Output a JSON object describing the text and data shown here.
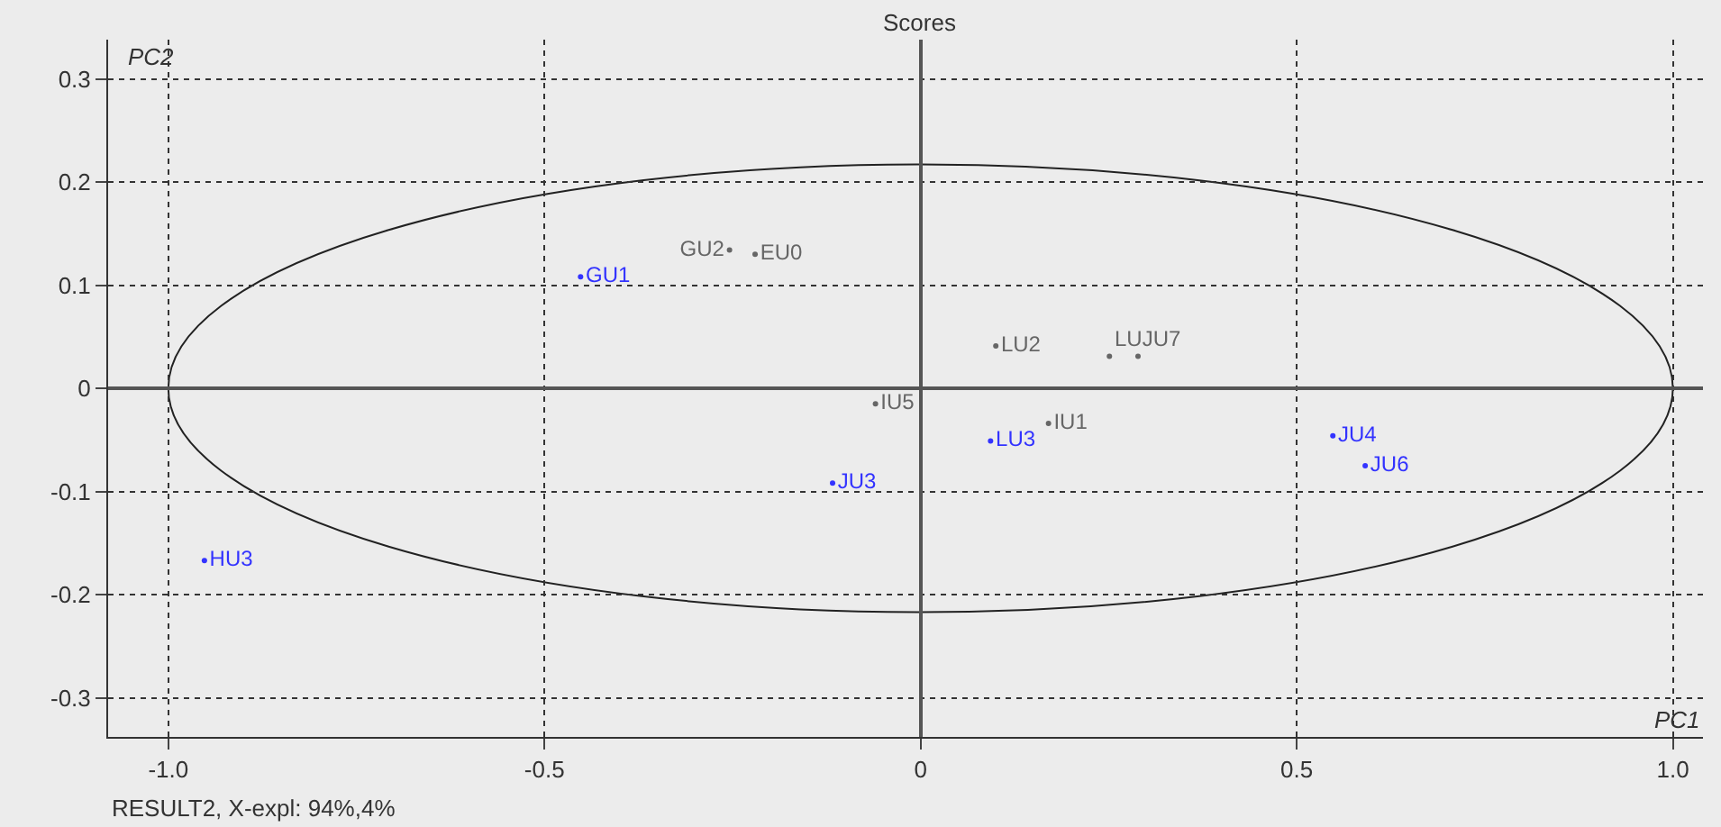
{
  "chart_data": {
    "type": "scatter",
    "title": "Scores",
    "xlabel": "PC1",
    "ylabel": "PC2",
    "annotations": [
      "RESULT2, X-expl: 94%,4%"
    ],
    "xlim": [
      -1.08,
      1.04
    ],
    "ylim": [
      -0.338,
      0.338
    ],
    "xticks": [
      {
        "value": -1.0,
        "label": "-1.0"
      },
      -0.5,
      0,
      0.5,
      {
        "value": 1.0,
        "label": "1.0"
      }
    ],
    "yticks": [
      -0.3,
      -0.2,
      -0.1,
      0,
      0.1,
      0.2,
      0.3
    ],
    "grid": true,
    "marker": "circle",
    "series": [
      {
        "color": "#3333ff",
        "x": [
          -0.452,
          0.093,
          -0.117,
          0.548,
          0.591,
          -0.952
        ],
        "values": [
          0.108,
          -0.051,
          -0.092,
          -0.046,
          -0.075,
          -0.167
        ],
        "value_labels": [
          "GU1",
          "LU3",
          "JU3",
          "JU4",
          "JU6",
          "HU3"
        ]
      },
      {
        "color": "#666666",
        "x": [
          -0.254,
          -0.22,
          0.1,
          0.251,
          0.289,
          -0.06,
          0.17
        ],
        "values": [
          0.134,
          0.13,
          0.041,
          0.031,
          0.031,
          -0.015,
          -0.034
        ],
        "value_labels": [
          "GU2",
          "EU0",
          "LU2",
          "LUJU7",
          null,
          "IU5",
          "IU1"
        ]
      }
    ]
  }
}
